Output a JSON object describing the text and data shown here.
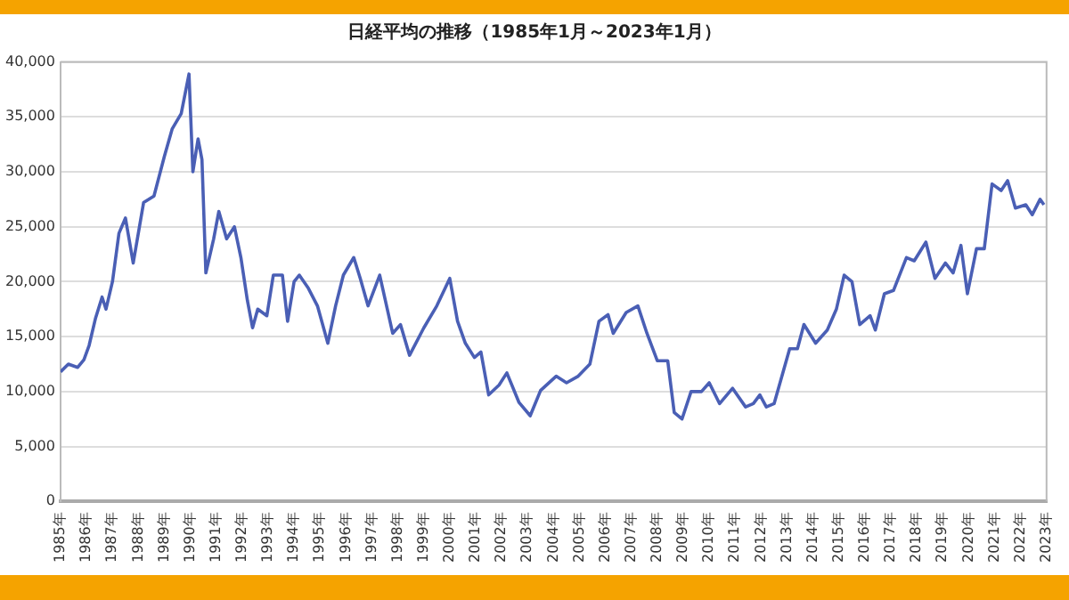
{
  "chart_data": {
    "type": "line",
    "title": "日経平均の推移（1985年1月～2023年1月）",
    "x": [
      1985.0,
      1985.3,
      1985.66,
      1985.9,
      1986.1,
      1986.35,
      1986.6,
      1986.75,
      1987.0,
      1987.25,
      1987.5,
      1987.8,
      1988.2,
      1988.6,
      1989.0,
      1989.3,
      1989.65,
      1989.95,
      1990.1,
      1990.3,
      1990.45,
      1990.6,
      1990.9,
      1991.1,
      1991.4,
      1991.7,
      1991.95,
      1992.2,
      1992.4,
      1992.6,
      1992.95,
      1993.2,
      1993.55,
      1993.75,
      1994.0,
      1994.2,
      1994.55,
      1994.9,
      1995.3,
      1995.6,
      1995.9,
      1996.3,
      1996.55,
      1996.85,
      1997.3,
      1997.8,
      1998.1,
      1998.45,
      1999.0,
      1999.5,
      2000.0,
      2000.3,
      2000.6,
      2000.95,
      2001.2,
      2001.5,
      2001.9,
      2002.2,
      2002.67,
      2003.1,
      2003.5,
      2004.1,
      2004.5,
      2004.95,
      2005.4,
      2005.75,
      2006.1,
      2006.3,
      2006.8,
      2007.25,
      2007.6,
      2008.0,
      2008.4,
      2008.65,
      2008.95,
      2009.3,
      2009.7,
      2010.0,
      2010.4,
      2010.9,
      2011.4,
      2011.7,
      2011.95,
      2012.2,
      2012.5,
      2013.1,
      2013.4,
      2013.65,
      2014.1,
      2014.55,
      2014.9,
      2015.2,
      2015.5,
      2015.8,
      2016.2,
      2016.4,
      2016.75,
      2017.1,
      2017.6,
      2017.9,
      2018.35,
      2018.7,
      2019.1,
      2019.4,
      2019.7,
      2019.95,
      2020.3,
      2020.6,
      2020.9,
      2021.25,
      2021.5,
      2021.8,
      2022.2,
      2022.45,
      2022.75,
      2022.9
    ],
    "series": [
      {
        "color": "#4a5fb5",
        "values": [
          11800,
          12500,
          12200,
          12900,
          14200,
          16700,
          18600,
          17500,
          20000,
          24400,
          25800,
          21700,
          27200,
          27800,
          31400,
          33900,
          35300,
          38900,
          30000,
          33000,
          31100,
          20800,
          23900,
          26400,
          23900,
          25000,
          22200,
          18300,
          15800,
          17500,
          16900,
          20600,
          20600,
          16400,
          20000,
          20600,
          19400,
          17800,
          14400,
          17800,
          20600,
          22200,
          20300,
          17800,
          20600,
          15300,
          16100,
          13300,
          15800,
          17800,
          20300,
          16400,
          14400,
          13100,
          13600,
          9700,
          10600,
          11700,
          9000,
          7800,
          10100,
          11400,
          10800,
          11400,
          12500,
          16400,
          17000,
          15300,
          17200,
          17800,
          15300,
          12800,
          12800,
          8100,
          7500,
          10000,
          10000,
          10800,
          8900,
          10300,
          8600,
          8900,
          9700,
          8600,
          8900,
          13900,
          13900,
          16100,
          14400,
          15600,
          17500,
          20600,
          20000,
          16100,
          16900,
          15600,
          18900,
          19200,
          22200,
          21900,
          23600,
          20300,
          21700,
          20800,
          23300,
          18900,
          23000,
          23000,
          28900,
          28300,
          29200,
          26700,
          27000,
          26100,
          27500,
          27000
        ]
      }
    ],
    "xlim": [
      1985,
      2023
    ],
    "xticks": [
      {
        "value": 1985,
        "label": "1985年"
      },
      {
        "value": 1986,
        "label": "1986年"
      },
      {
        "value": 1987,
        "label": "1987年"
      },
      {
        "value": 1988,
        "label": "1988年"
      },
      {
        "value": 1989,
        "label": "1989年"
      },
      {
        "value": 1990,
        "label": "1990年"
      },
      {
        "value": 1991,
        "label": "1991年"
      },
      {
        "value": 1992,
        "label": "1992年"
      },
      {
        "value": 1993,
        "label": "1993年"
      },
      {
        "value": 1994,
        "label": "1994年"
      },
      {
        "value": 1995,
        "label": "1995年"
      },
      {
        "value": 1996,
        "label": "1996年"
      },
      {
        "value": 1997,
        "label": "1997年"
      },
      {
        "value": 1998,
        "label": "1998年"
      },
      {
        "value": 1999,
        "label": "1999年"
      },
      {
        "value": 2000,
        "label": "2000年"
      },
      {
        "value": 2001,
        "label": "2001年"
      },
      {
        "value": 2002,
        "label": "2002年"
      },
      {
        "value": 2003,
        "label": "2003年"
      },
      {
        "value": 2004,
        "label": "2004年"
      },
      {
        "value": 2005,
        "label": "2005年"
      },
      {
        "value": 2006,
        "label": "2006年"
      },
      {
        "value": 2007,
        "label": "2007年"
      },
      {
        "value": 2008,
        "label": "2008年"
      },
      {
        "value": 2009,
        "label": "2009年"
      },
      {
        "value": 2010,
        "label": "2010年"
      },
      {
        "value": 2011,
        "label": "2011年"
      },
      {
        "value": 2012,
        "label": "2012年"
      },
      {
        "value": 2013,
        "label": "2013年"
      },
      {
        "value": 2014,
        "label": "2014年"
      },
      {
        "value": 2015,
        "label": "2015年"
      },
      {
        "value": 2016,
        "label": "2016年"
      },
      {
        "value": 2017,
        "label": "2017年"
      },
      {
        "value": 2018,
        "label": "2018年"
      },
      {
        "value": 2019,
        "label": "2019年"
      },
      {
        "value": 2020,
        "label": "2020年"
      },
      {
        "value": 2021,
        "label": "2021年"
      },
      {
        "value": 2022,
        "label": "2022年"
      },
      {
        "value": 2023,
        "label": "2023年"
      }
    ],
    "ylim": [
      0,
      40000
    ],
    "yticks": [
      {
        "value": 0,
        "label": "0"
      },
      {
        "value": 5000,
        "label": "5,000"
      },
      {
        "value": 10000,
        "label": "10,000"
      },
      {
        "value": 15000,
        "label": "15,000"
      },
      {
        "value": 20000,
        "label": "20,000"
      },
      {
        "value": 25000,
        "label": "25,000"
      },
      {
        "value": 30000,
        "label": "30,000"
      },
      {
        "value": 35000,
        "label": "35,000"
      },
      {
        "value": 40000,
        "label": "40,000"
      }
    ],
    "grid": "y",
    "marker": "none",
    "line_style": "solid",
    "legend": false
  }
}
